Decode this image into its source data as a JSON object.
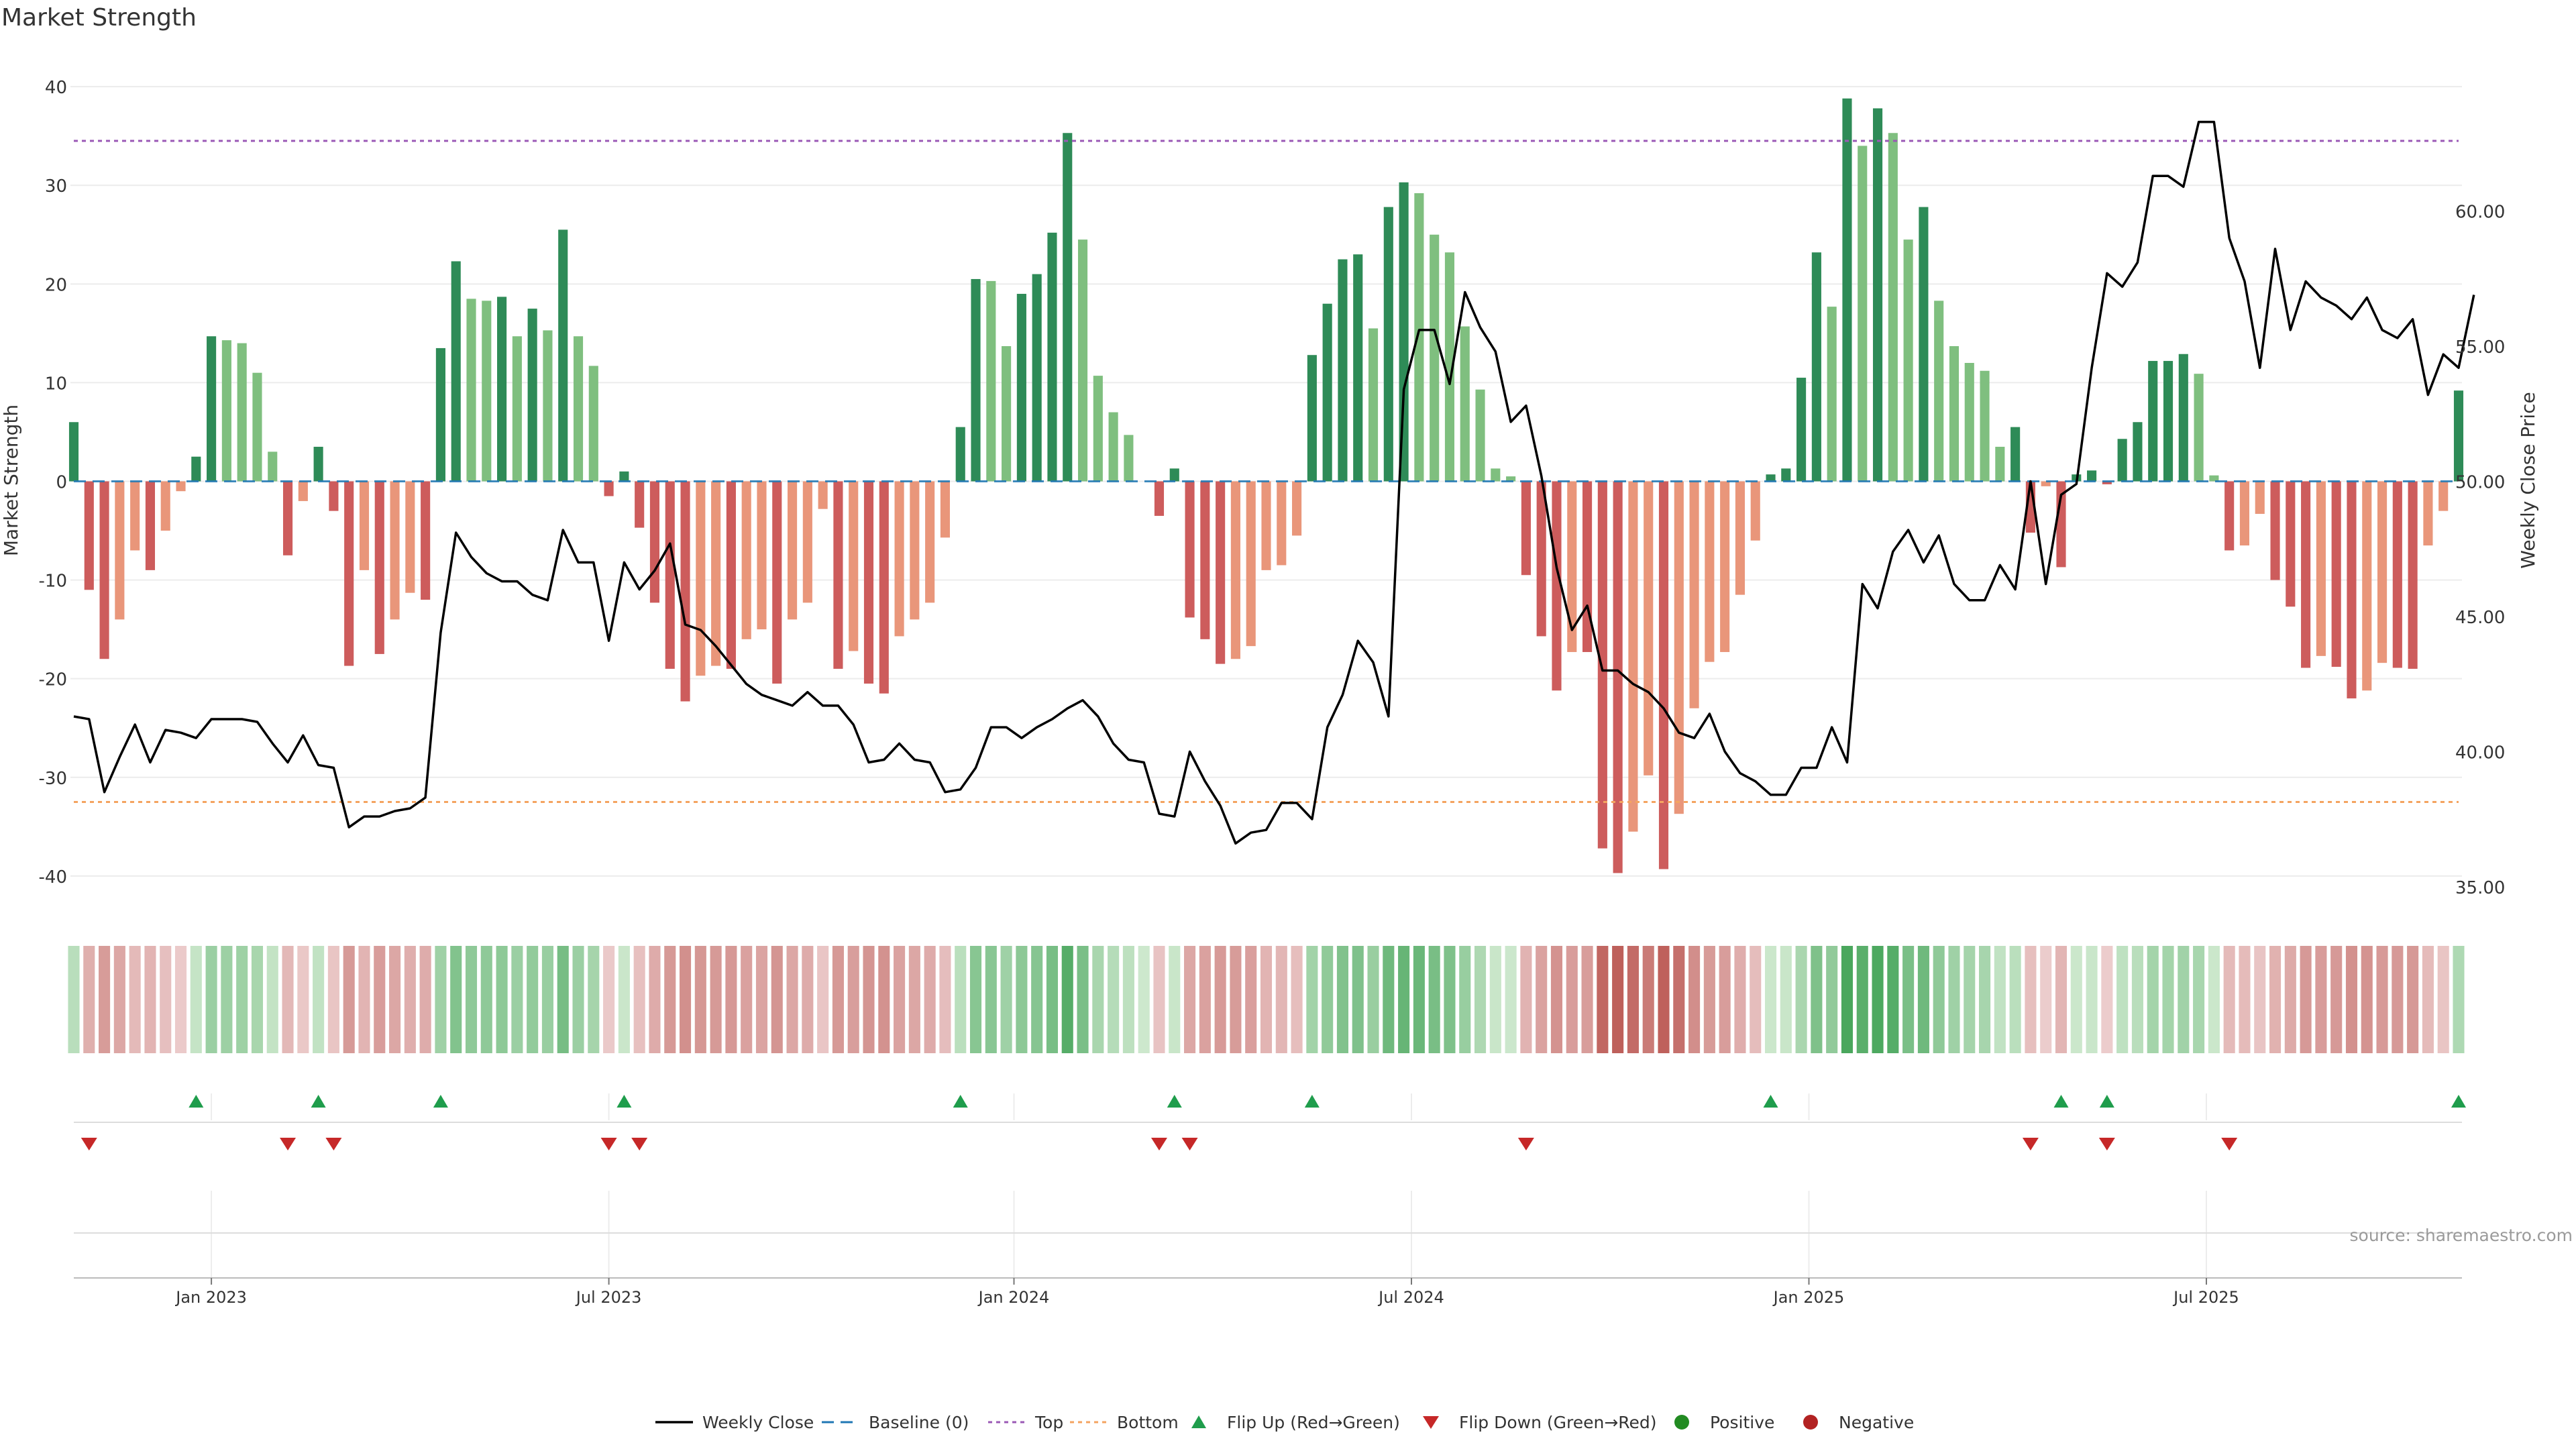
{
  "page": {
    "title": "Market Strength",
    "source": "source: sharemaestro.com"
  },
  "axes": {
    "left_label": "Market Strength",
    "right_label": "Weekly Close Price",
    "left_ticks": [
      40,
      30,
      20,
      10,
      0,
      -10,
      -20,
      -30,
      -40
    ],
    "left_range": [
      -43,
      43
    ],
    "right_ticks": [
      "60.00",
      "55.00",
      "50.00",
      "45.00",
      "40.00",
      "35.00"
    ],
    "right_tick_values": [
      60,
      55,
      50,
      45,
      40,
      35
    ],
    "right_range": [
      34.3,
      65.7
    ],
    "x_ticks": [
      "Jan 2023",
      "Jul 2023",
      "Jan 2024",
      "Jul 2024",
      "Jan 2025",
      "Jul 2025"
    ],
    "x_tick_weeks": [
      9,
      35,
      61.5,
      87.5,
      113.5,
      139.5
    ]
  },
  "colors": {
    "pos_dark": "#2e8b57",
    "pos_light": "#7fbf7f",
    "neg_dark": "#cd5c5c",
    "neg_light": "#e9967a",
    "flip_up": "#1f9d4c",
    "flip_down": "#c62828",
    "positive_dot": "#228b22",
    "negative_dot": "#b22222",
    "top_line": "#9b59b6",
    "bottom_line": "#f4a460",
    "baseline": "#1f77b4"
  },
  "legend": [
    {
      "key": "weekly-close",
      "label": "Weekly Close"
    },
    {
      "key": "baseline",
      "label": "Baseline (0)"
    },
    {
      "key": "top",
      "label": "Top"
    },
    {
      "key": "bottom",
      "label": "Bottom"
    },
    {
      "key": "flip-up",
      "label": "Flip Up (Red→Green)"
    },
    {
      "key": "flip-down",
      "label": "Flip Down (Green→Red)"
    },
    {
      "key": "positive",
      "label": "Positive"
    },
    {
      "key": "negative",
      "label": "Negative"
    }
  ],
  "chart_data": {
    "type": "bar",
    "title": "Market Strength",
    "ylabel": "Market Strength",
    "y2label": "Weekly Close Price",
    "ylim": [
      -43,
      43
    ],
    "y2lim": [
      34.3,
      65.7
    ],
    "top_level": 34.5,
    "bottom_level": -32.5,
    "strength": [
      6,
      -11,
      -18,
      -14,
      -7,
      -9,
      -5,
      -1,
      2.5,
      14.7,
      14.3,
      14,
      11,
      3,
      -7.5,
      -2,
      3.5,
      -3,
      -18.7,
      -9,
      -17.5,
      -14,
      -11.3,
      -12,
      13.5,
      22.3,
      18.5,
      18.3,
      18.7,
      14.7,
      17.5,
      15.3,
      25.5,
      14.7,
      11.7,
      -1.5,
      1,
      -4.7,
      -12.3,
      -19,
      -22.3,
      -19.7,
      -18.7,
      -19,
      -16,
      -15,
      -20.5,
      -14,
      -12.3,
      -2.8,
      -19,
      -17.2,
      -20.5,
      -21.5,
      -15.7,
      -14,
      -12.3,
      -5.7,
      5.5,
      20.5,
      20.3,
      13.7,
      19,
      21,
      25.2,
      35.3,
      24.5,
      10.7,
      7,
      4.7,
      0,
      -3.5,
      1.3,
      -13.8,
      -16,
      -18.5,
      -18,
      -16.7,
      -9,
      -8.5,
      -5.5,
      12.8,
      18,
      22.5,
      23,
      15.5,
      27.8,
      30.3,
      29.2,
      25,
      23.2,
      15.7,
      9.3,
      1.3,
      0.5,
      -9.5,
      -15.7,
      -21.2,
      -17.3,
      -17.3,
      -37.2,
      -39.7,
      -35.5,
      -29.8,
      -39.3,
      -33.7,
      -23,
      -18.3,
      -17.3,
      -11.5,
      -6,
      0.7,
      1.3,
      10.5,
      23.2,
      17.7,
      38.8,
      34,
      37.8,
      35.3,
      24.5,
      27.8,
      18.3,
      13.7,
      12,
      11.2,
      3.5,
      5.5,
      -5.2,
      -0.5,
      -8.7,
      0.7,
      1.1,
      -0.3,
      4.3,
      6,
      12.2,
      12.2,
      12.9,
      10.9,
      0.6,
      -7,
      -6.5,
      -3.3,
      -10,
      -12.7,
      -18.9,
      -17.7,
      -18.8,
      -22,
      -21.2,
      -18.4,
      -18.9,
      -19,
      -6.5,
      -3,
      9.2
    ],
    "close": [
      41.3,
      41.2,
      38.5,
      39.8,
      41.0,
      39.6,
      40.8,
      40.7,
      40.5,
      41.2,
      41.2,
      41.2,
      41.1,
      40.3,
      39.6,
      40.6,
      39.5,
      39.4,
      37.2,
      37.6,
      37.6,
      37.8,
      37.9,
      38.3,
      44.4,
      48.1,
      47.2,
      46.6,
      46.3,
      46.3,
      45.8,
      45.6,
      48.2,
      47.0,
      47.0,
      44.1,
      47.0,
      46.0,
      46.7,
      47.7,
      44.7,
      44.5,
      43.9,
      43.2,
      42.5,
      42.1,
      41.9,
      41.7,
      42.2,
      41.7,
      41.7,
      41.0,
      39.6,
      39.7,
      40.3,
      39.7,
      39.6,
      38.5,
      38.6,
      39.4,
      40.9,
      40.9,
      40.5,
      40.9,
      41.2,
      41.6,
      41.9,
      41.3,
      40.3,
      39.7,
      39.6,
      37.7,
      37.6,
      40.0,
      38.9,
      38.0,
      36.6,
      37.0,
      37.1,
      38.1,
      38.1,
      37.5,
      40.9,
      42.1,
      44.1,
      43.3,
      41.3,
      53.4,
      55.6,
      55.6,
      53.6,
      57.0,
      55.7,
      54.8,
      52.2,
      52.8,
      50.2,
      46.8,
      44.5,
      45.4,
      43.0,
      43.0,
      42.5,
      42.2,
      41.6,
      40.7,
      40.5,
      41.4,
      40.0,
      39.2,
      38.9,
      38.4,
      38.4,
      39.4,
      39.4,
      40.9,
      39.6,
      46.2,
      45.3,
      47.4,
      48.2,
      47.0,
      48.0,
      46.2,
      45.6,
      45.6,
      46.9,
      46.0,
      50.0,
      46.2,
      49.5,
      49.9,
      54.2,
      57.7,
      57.2,
      58.1,
      61.3,
      61.3,
      60.9,
      63.3,
      63.3,
      59.0,
      57.4,
      54.2,
      58.6,
      55.6,
      57.4,
      56.8,
      56.5,
      56.0,
      56.8,
      55.6,
      55.3,
      56.0,
      53.2,
      54.7,
      54.2,
      56.9
    ],
    "flip_up_weeks": [
      8,
      16,
      24,
      36,
      58,
      72,
      81,
      111,
      130,
      133,
      156
    ],
    "flip_down_weeks": [
      1,
      14,
      17,
      35,
      37,
      71,
      73,
      95,
      128,
      133,
      141
    ],
    "x_tick_labels": [
      "Jan 2023",
      "Jul 2023",
      "Jan 2024",
      "Jul 2024",
      "Jan 2025",
      "Jul 2025"
    ]
  }
}
